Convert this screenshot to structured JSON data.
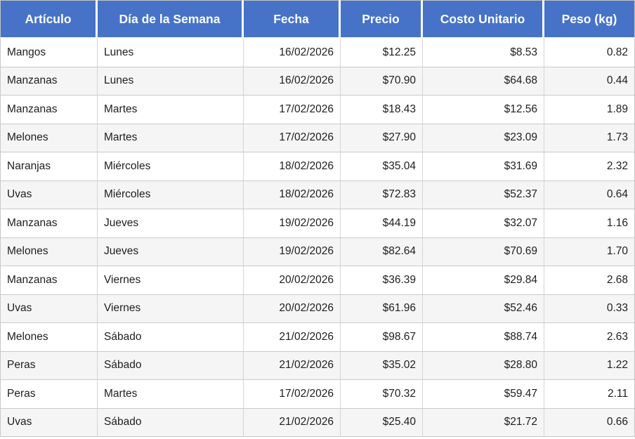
{
  "colors": {
    "header_bg": "#4673c8",
    "header_text": "#ffffff",
    "row_bg": "#ffffff",
    "row_alt_bg": "#f5f5f5",
    "grid_border": "#c9c9c9"
  },
  "table": {
    "columns": [
      {
        "label": "Artículo",
        "align": "left"
      },
      {
        "label": "Día de la Semana",
        "align": "left"
      },
      {
        "label": "Fecha",
        "align": "right"
      },
      {
        "label": "Precio",
        "align": "right"
      },
      {
        "label": "Costo Unitario",
        "align": "right"
      },
      {
        "label": "Peso (kg)",
        "align": "right"
      }
    ],
    "rows": [
      [
        "Mangos",
        "Lunes",
        "16/02/2026",
        "$12.25",
        "$8.53",
        "0.82"
      ],
      [
        "Manzanas",
        "Lunes",
        "16/02/2026",
        "$70.90",
        "$64.68",
        "0.44"
      ],
      [
        "Manzanas",
        "Martes",
        "17/02/2026",
        "$18.43",
        "$12.56",
        "1.89"
      ],
      [
        "Melones",
        "Martes",
        "17/02/2026",
        "$27.90",
        "$23.09",
        "1.73"
      ],
      [
        "Naranjas",
        "Miércoles",
        "18/02/2026",
        "$35.04",
        "$31.69",
        "2.32"
      ],
      [
        "Uvas",
        "Miércoles",
        "18/02/2026",
        "$72.83",
        "$52.37",
        "0.64"
      ],
      [
        "Manzanas",
        "Jueves",
        "19/02/2026",
        "$44.19",
        "$32.07",
        "1.16"
      ],
      [
        "Melones",
        "Jueves",
        "19/02/2026",
        "$82.64",
        "$70.69",
        "1.70"
      ],
      [
        "Manzanas",
        "Viernes",
        "20/02/2026",
        "$36.39",
        "$29.84",
        "2.68"
      ],
      [
        "Uvas",
        "Viernes",
        "20/02/2026",
        "$61.96",
        "$52.46",
        "0.33"
      ],
      [
        "Melones",
        "Sábado",
        "21/02/2026",
        "$98.67",
        "$88.74",
        "2.63"
      ],
      [
        "Peras",
        "Sábado",
        "21/02/2026",
        "$35.02",
        "$28.80",
        "1.22"
      ],
      [
        "Peras",
        "Martes",
        "17/02/2026",
        "$70.32",
        "$59.47",
        "2.11"
      ],
      [
        "Uvas",
        "Sábado",
        "21/02/2026",
        "$25.40",
        "$21.72",
        "0.66"
      ]
    ]
  }
}
